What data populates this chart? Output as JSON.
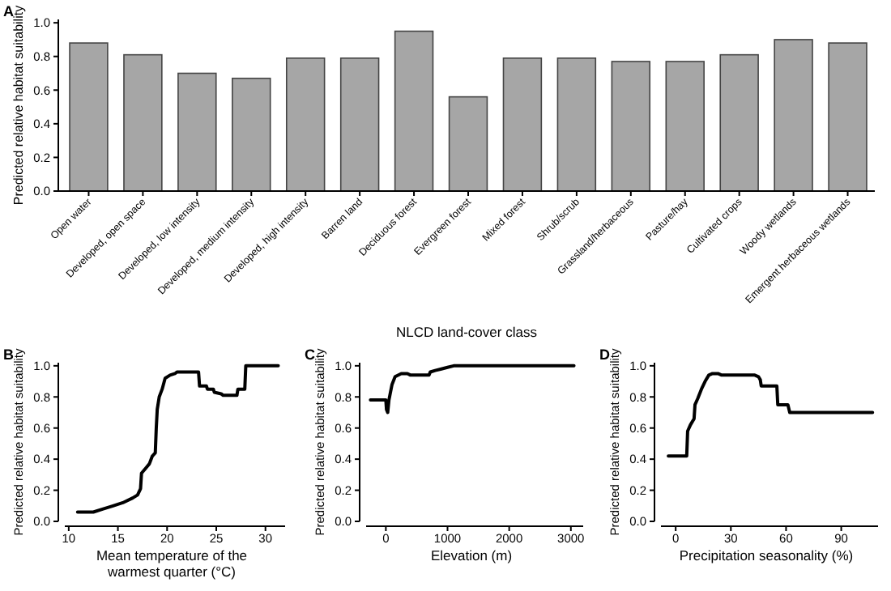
{
  "chart_data": [
    {
      "type": "bar",
      "title": "A",
      "xlabel": "NLCD land-cover class",
      "ylabel": "Predicted relative habitat suitability",
      "categories": [
        "Open water",
        "Developed, open space",
        "Developed, low intensity",
        "Developed, medium intensity",
        "Developed, high intensity",
        "Barren land",
        "Deciduous forest",
        "Evergreen forest",
        "Mixed forest",
        "Shrub/scrub",
        "Grassland/herbaceous",
        "Pasture/hay",
        "Cultivated crops",
        "Woody wetlands",
        "Emergent herbaceous wetlands"
      ],
      "values": [
        0.88,
        0.81,
        0.7,
        0.67,
        0.79,
        0.79,
        0.95,
        0.56,
        0.79,
        0.79,
        0.77,
        0.77,
        0.81,
        0.9,
        0.88
      ],
      "color": "#a6a6a6",
      "ylim": [
        0,
        1.02
      ],
      "yticks": [
        {
          "value": 0,
          "label": "0.0"
        },
        {
          "value": 0.2,
          "label": "0.2"
        },
        {
          "value": 0.4,
          "label": "0.4"
        },
        {
          "value": 0.6,
          "label": "0.6"
        },
        {
          "value": 0.8,
          "label": "0.8"
        },
        {
          "value": 1,
          "label": "1.0"
        }
      ]
    },
    {
      "type": "line",
      "title": "B",
      "xlabel": "Mean temperature of the warmest quarter (°C)",
      "ylabel": "Predicted relative habitat suitability",
      "xlim": [
        9.6,
        32
      ],
      "xticks": [
        10,
        15,
        20,
        25,
        30
      ],
      "ylim": [
        0,
        1.02
      ],
      "yticks": [
        {
          "value": 0,
          "label": "0.0"
        },
        {
          "value": 0.2,
          "label": "0.2"
        },
        {
          "value": 0.4,
          "label": "0.4"
        },
        {
          "value": 0.6,
          "label": "0.6"
        },
        {
          "value": 0.8,
          "label": "0.8"
        },
        {
          "value": 1,
          "label": "1.0"
        }
      ],
      "series": [
        {
          "color": "#000000",
          "x": [
            10.9,
            12,
            12.5,
            13.5,
            14.5,
            15.5,
            16.5,
            17,
            17.3,
            17.4,
            17.8,
            18.2,
            18.5,
            18.8,
            18.9,
            19,
            19.2,
            19.5,
            19.8,
            20.3,
            20.8,
            21,
            23.2,
            23.3,
            24,
            24.1,
            24.7,
            24.8,
            25.5,
            25.7,
            27.1,
            27.2,
            27.9,
            28,
            31.3
          ],
          "values": [
            0.06,
            0.06,
            0.06,
            0.08,
            0.1,
            0.12,
            0.15,
            0.17,
            0.21,
            0.31,
            0.34,
            0.37,
            0.42,
            0.44,
            0.6,
            0.72,
            0.8,
            0.85,
            0.92,
            0.94,
            0.95,
            0.96,
            0.96,
            0.87,
            0.87,
            0.85,
            0.85,
            0.83,
            0.82,
            0.81,
            0.81,
            0.85,
            0.85,
            1,
            1
          ]
        }
      ]
    },
    {
      "type": "line",
      "title": "C",
      "xlabel": "Elevation (m)",
      "ylabel": "Predicted relative habitat suitability",
      "xlim": [
        -320,
        3200
      ],
      "xticks": [
        0,
        1000,
        2000,
        3000
      ],
      "ylim": [
        0,
        1.02
      ],
      "yticks": [
        {
          "value": 0,
          "label": "0.0"
        },
        {
          "value": 0.2,
          "label": "0.2"
        },
        {
          "value": 0.4,
          "label": "0.4"
        },
        {
          "value": 0.6,
          "label": "0.6"
        },
        {
          "value": 0.8,
          "label": "0.8"
        },
        {
          "value": 1,
          "label": "1.0"
        }
      ],
      "series": [
        {
          "color": "#000000",
          "x": [
            -250,
            0,
            10,
            30,
            50,
            100,
            150,
            250,
            350,
            400,
            700,
            720,
            800,
            900,
            1000,
            1100,
            3050
          ],
          "values": [
            0.78,
            0.78,
            0.72,
            0.7,
            0.78,
            0.88,
            0.93,
            0.95,
            0.95,
            0.94,
            0.94,
            0.96,
            0.97,
            0.98,
            0.99,
            1,
            1
          ]
        }
      ]
    },
    {
      "type": "line",
      "title": "D",
      "xlabel": "Precipitation seasonality (%)",
      "ylabel": "Predicted relative habitat suitability",
      "xlim": [
        -8,
        110
      ],
      "xticks": [
        0,
        30,
        60,
        90
      ],
      "ylim": [
        0,
        1.02
      ],
      "yticks": [
        {
          "value": 0,
          "label": "0.0"
        },
        {
          "value": 0.2,
          "label": "0.2"
        },
        {
          "value": 0.4,
          "label": "0.4"
        },
        {
          "value": 0.6,
          "label": "0.6"
        },
        {
          "value": 0.8,
          "label": "0.8"
        },
        {
          "value": 1,
          "label": "1.0"
        }
      ],
      "series": [
        {
          "color": "#000000",
          "x": [
            -4,
            6,
            6.5,
            8,
            10,
            10.5,
            12,
            14,
            16,
            18,
            20,
            23,
            25,
            43,
            45,
            46,
            46.5,
            55,
            55.5,
            61,
            62,
            107
          ],
          "values": [
            0.42,
            0.42,
            0.58,
            0.62,
            0.66,
            0.75,
            0.79,
            0.85,
            0.9,
            0.94,
            0.95,
            0.95,
            0.94,
            0.94,
            0.93,
            0.91,
            0.87,
            0.87,
            0.75,
            0.75,
            0.7,
            0.7
          ]
        }
      ]
    }
  ]
}
